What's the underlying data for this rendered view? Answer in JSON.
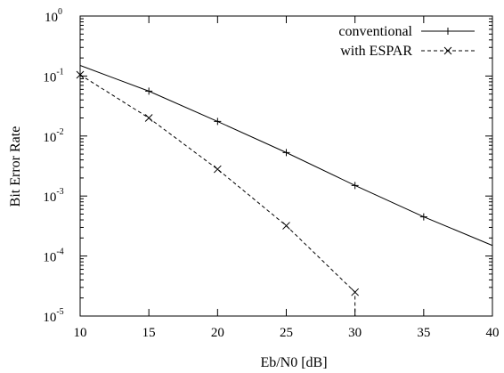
{
  "chart_data": {
    "type": "line",
    "title": "",
    "xlabel": "Eb/N0 [dB]",
    "ylabel": "Bit Error Rate",
    "xlim": [
      10,
      40
    ],
    "ylim": [
      1e-05,
      1
    ],
    "yscale": "log",
    "grid": false,
    "legend_position": "top-right",
    "x_ticks": [
      10,
      15,
      20,
      25,
      30,
      35,
      40
    ],
    "x_tick_labels": [
      "10",
      "15",
      "20",
      "25",
      "30",
      "35",
      "40"
    ],
    "y_ticks": [
      1e-05,
      0.0001,
      0.001,
      0.01,
      0.1,
      1
    ],
    "y_tick_labels": [
      {
        "base": "10",
        "exp": "-5"
      },
      {
        "base": "10",
        "exp": "-4"
      },
      {
        "base": "10",
        "exp": "-3"
      },
      {
        "base": "10",
        "exp": "-2"
      },
      {
        "base": "10",
        "exp": "-1"
      },
      {
        "base": "10",
        "exp": "0"
      }
    ],
    "series": [
      {
        "name": "conventional",
        "line_style": "solid",
        "marker": "plus",
        "color": "#000000",
        "points": [
          {
            "x": 10,
            "y": 0.15
          },
          {
            "x": 15,
            "y": 0.056
          },
          {
            "x": 20,
            "y": 0.0175
          },
          {
            "x": 25,
            "y": 0.0053
          },
          {
            "x": 30,
            "y": 0.0015
          },
          {
            "x": 35,
            "y": 0.00045
          },
          {
            "x": 40,
            "y": 0.00015
          }
        ],
        "markers": [
          {
            "x": 15,
            "y": 0.056
          },
          {
            "x": 20,
            "y": 0.0175
          },
          {
            "x": 25,
            "y": 0.0053
          },
          {
            "x": 30,
            "y": 0.0015
          },
          {
            "x": 35,
            "y": 0.00045
          }
        ]
      },
      {
        "name": "with ESPAR",
        "line_style": "dashed",
        "marker": "cross",
        "color": "#000000",
        "points": [
          {
            "x": 10,
            "y": 0.105
          },
          {
            "x": 15,
            "y": 0.02
          },
          {
            "x": 20,
            "y": 0.0028
          },
          {
            "x": 25,
            "y": 0.00032
          },
          {
            "x": 30,
            "y": 2.5e-05
          },
          {
            "x": 30,
            "y": 1e-05
          }
        ],
        "markers": [
          {
            "x": 10,
            "y": 0.105
          },
          {
            "x": 15,
            "y": 0.02
          },
          {
            "x": 20,
            "y": 0.0028
          },
          {
            "x": 25,
            "y": 0.00032
          },
          {
            "x": 30,
            "y": 2.5e-05
          }
        ]
      }
    ]
  }
}
